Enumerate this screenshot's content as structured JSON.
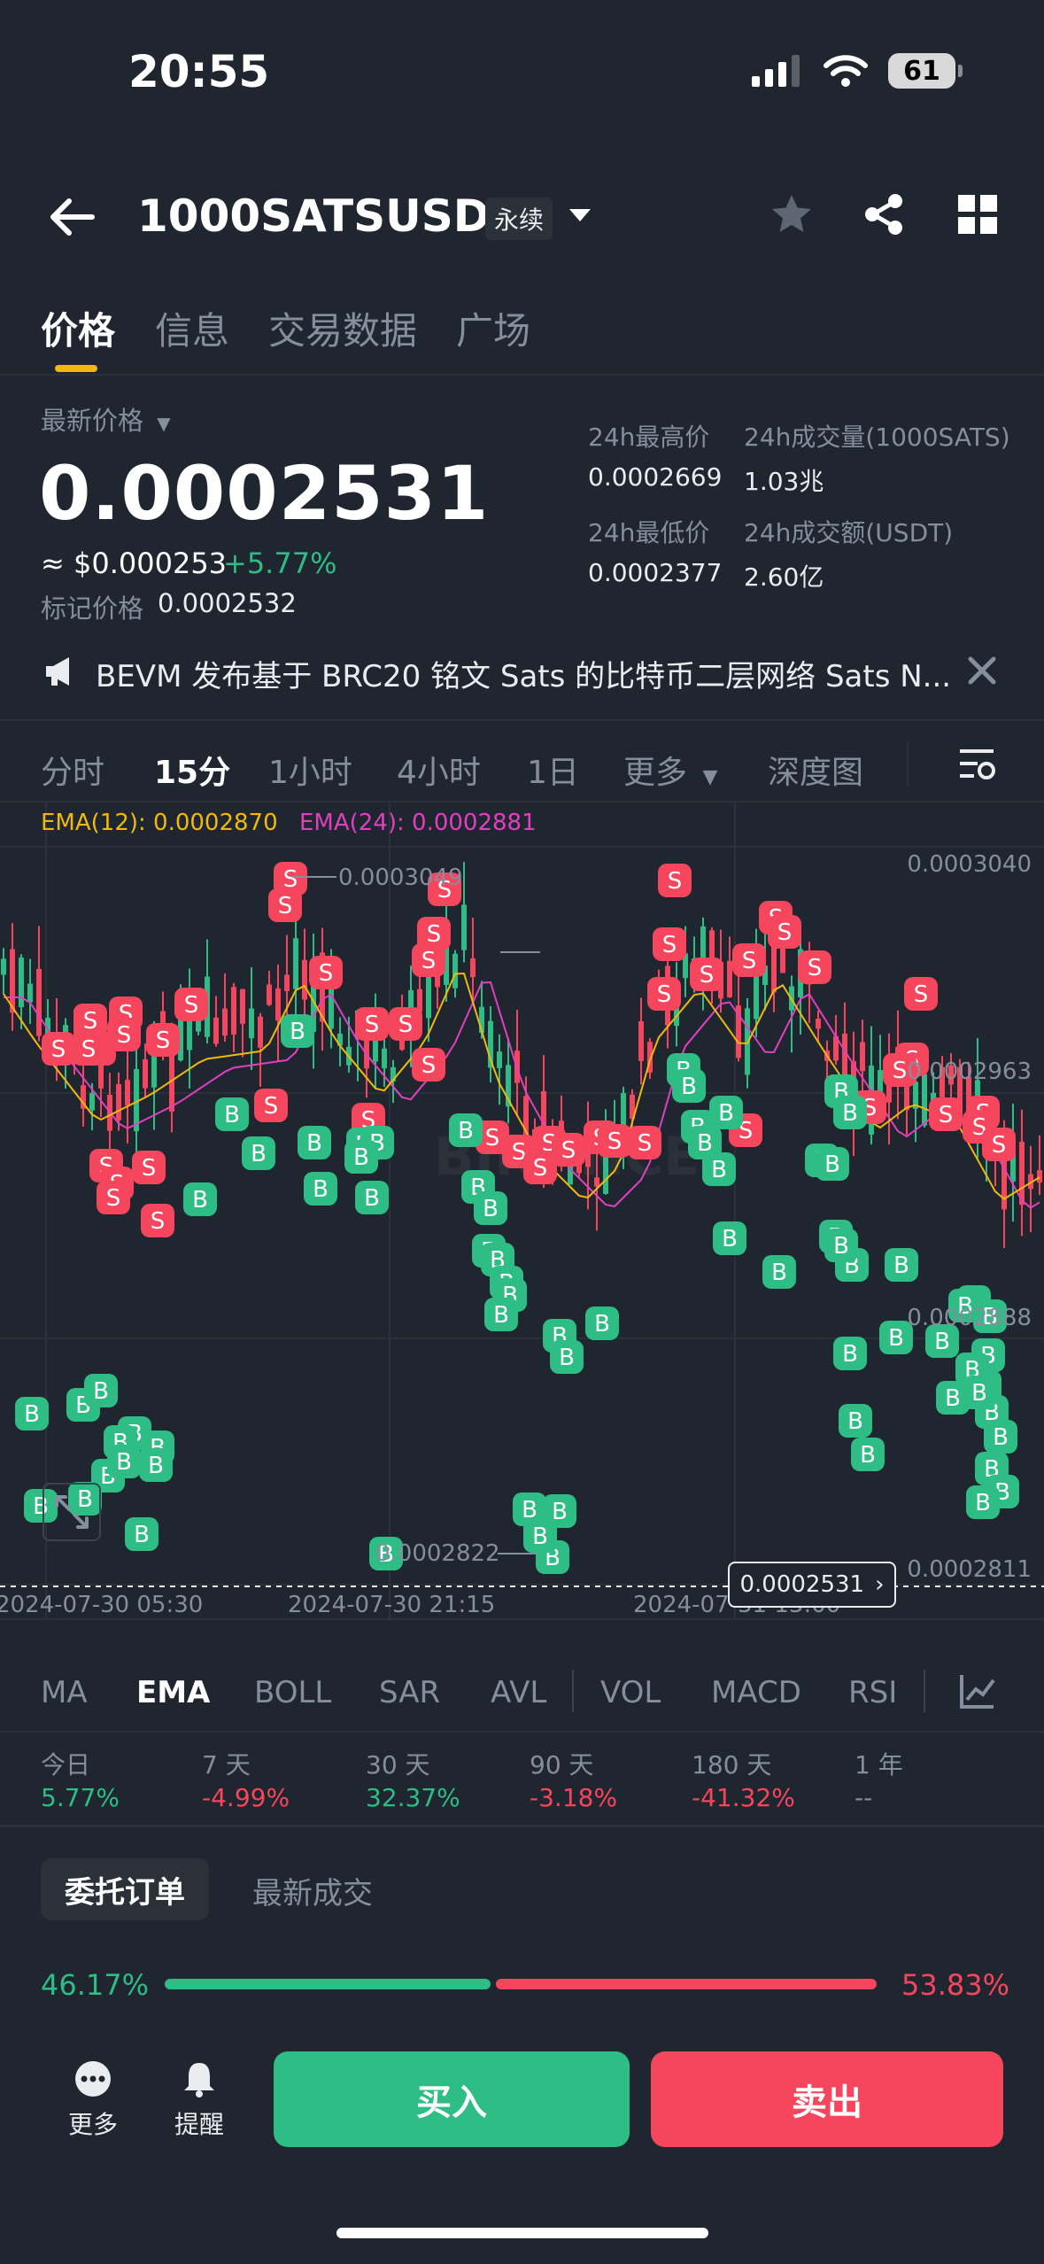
{
  "status_bar": {
    "time": "20:55",
    "battery": "61"
  },
  "header": {
    "pair": "1000SATSUSDT",
    "contract_type": "永续"
  },
  "tabs": [
    {
      "label": "价格",
      "active": true
    },
    {
      "label": "信息",
      "active": false
    },
    {
      "label": "交易数据",
      "active": false
    },
    {
      "label": "广场",
      "active": false
    }
  ],
  "price": {
    "label": "最新价格",
    "last": "0.0002531",
    "usd": "≈ $0.000253",
    "change": "+5.77%",
    "mark_label": "标记价格",
    "mark_value": "0.0002532"
  },
  "stats": {
    "high_label": "24h最高价",
    "high_value": "0.0002669",
    "low_label": "24h最低价",
    "low_value": "0.0002377",
    "vol_label": "24h成交量(1000SATS)",
    "vol_value": "1.03兆",
    "amount_label": "24h成交额(USDT)",
    "amount_value": "2.60亿"
  },
  "announcement": {
    "text": "BEVM 发布基于 BRC20 铭文 Sats 的比特币二层网络 Sats N..."
  },
  "intervals": [
    {
      "label": "分时",
      "active": false
    },
    {
      "label": "15分",
      "active": true
    },
    {
      "label": "1小时",
      "active": false
    },
    {
      "label": "4小时",
      "active": false
    },
    {
      "label": "1日",
      "active": false
    },
    {
      "label": "更多",
      "active": false
    },
    {
      "label": "深度图",
      "active": false
    }
  ],
  "chart_data": {
    "type": "candlestick",
    "indicators": {
      "ema12_label": "EMA(12): 0.0002870",
      "ema24_label": "EMA(24): 0.0002881"
    },
    "price_ticks": [
      "0.0003040",
      "0.0002963",
      "0.0002888",
      "0.0002811"
    ],
    "time_ticks": [
      "2024-07-30 05:30",
      "2024-07-30 21:15",
      "2024-07-31 13:00"
    ],
    "high_marker": "0.0003049",
    "low_marker": "0.0002822",
    "current_price": "0.0002531",
    "watermark": "BINANCE",
    "ylim": [
      0.00028,
      0.000306
    ],
    "colors": {
      "up": "#2ebd85",
      "down": "#f6465d",
      "ema12": "#f0b90b",
      "ema24": "#e040c0"
    }
  },
  "indicator_tabs": [
    {
      "label": "MA",
      "active": false
    },
    {
      "label": "EMA",
      "active": true
    },
    {
      "label": "BOLL",
      "active": false
    },
    {
      "label": "SAR",
      "active": false
    },
    {
      "label": "AVL",
      "active": false
    },
    {
      "label": "VOL",
      "active": false
    },
    {
      "label": "MACD",
      "active": false
    },
    {
      "label": "RSI",
      "active": false
    }
  ],
  "performance": [
    {
      "label": "今日",
      "value": "5.77%",
      "trend": "up"
    },
    {
      "label": "7 天",
      "value": "-4.99%",
      "trend": "down"
    },
    {
      "label": "30 天",
      "value": "32.37%",
      "trend": "up"
    },
    {
      "label": "90 天",
      "value": "-3.18%",
      "trend": "down"
    },
    {
      "label": "180 天",
      "value": "-41.32%",
      "trend": "down"
    },
    {
      "label": "1 年",
      "value": "--",
      "trend": "none"
    }
  ],
  "order_tabs": {
    "active": "委托订单",
    "other": "最新成交"
  },
  "ratio": {
    "buy": "46.17%",
    "sell": "53.83%",
    "buy_fraction": 0.4617
  },
  "bottom": {
    "more": "更多",
    "alert": "提醒",
    "buy": "买入",
    "sell": "卖出"
  }
}
